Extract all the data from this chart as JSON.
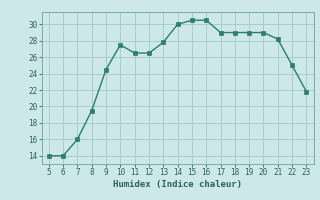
{
  "x": [
    5,
    6,
    7,
    8,
    9,
    10,
    11,
    12,
    13,
    14,
    15,
    16,
    17,
    18,
    19,
    20,
    21,
    22,
    23
  ],
  "y": [
    14,
    14,
    16,
    19.5,
    24.5,
    27.5,
    26.5,
    26.5,
    27.8,
    30,
    30.5,
    30.5,
    29,
    29,
    29,
    29,
    28.2,
    25,
    21.8
  ],
  "line_color": "#2e7d6e",
  "marker_color": "#2e7d6e",
  "bg_color": "#cce8e8",
  "grid_color": "#aacccc",
  "xlabel": "Humidex (Indice chaleur)",
  "xlim": [
    4.5,
    23.5
  ],
  "ylim": [
    13,
    31.5
  ],
  "yticks": [
    14,
    16,
    18,
    20,
    22,
    24,
    26,
    28,
    30
  ],
  "xticks": [
    5,
    6,
    7,
    8,
    9,
    10,
    11,
    12,
    13,
    14,
    15,
    16,
    17,
    18,
    19,
    20,
    21,
    22,
    23
  ]
}
